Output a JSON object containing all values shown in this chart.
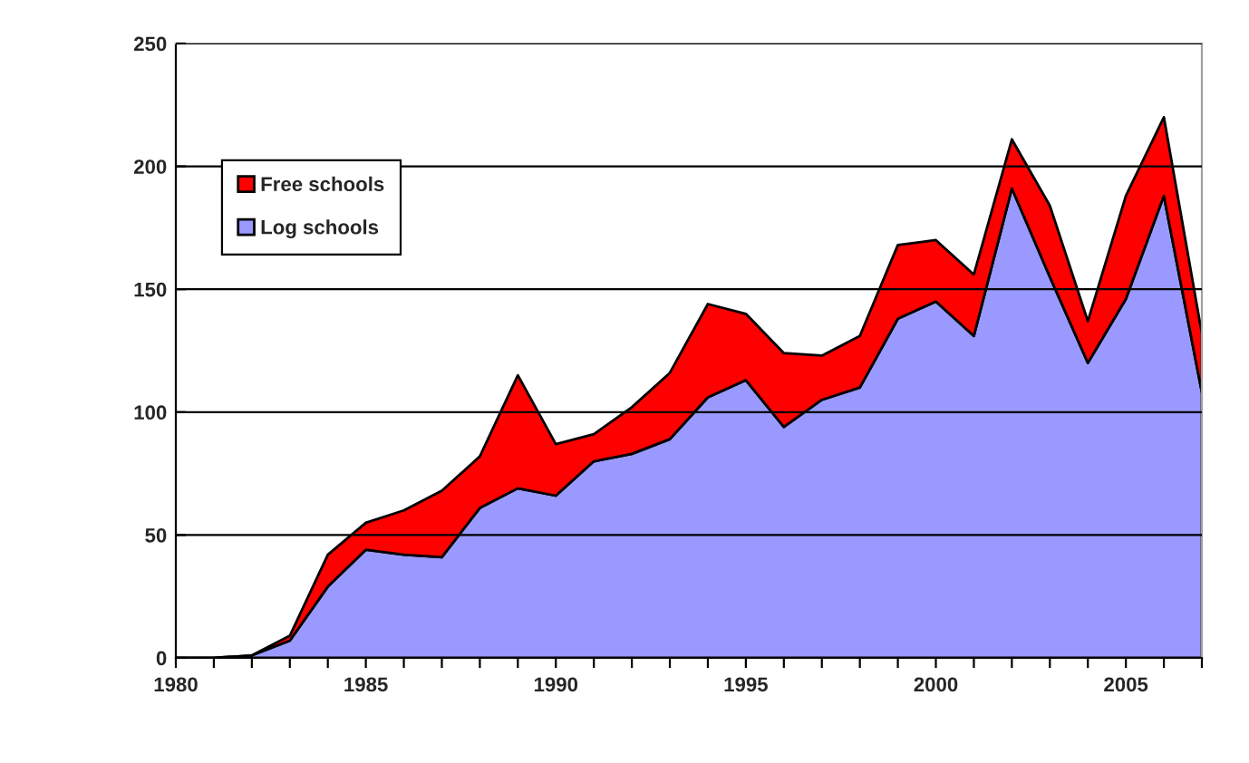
{
  "chart_data": {
    "type": "area",
    "stacked": true,
    "x": [
      1980,
      1981,
      1982,
      1983,
      1984,
      1985,
      1986,
      1987,
      1988,
      1989,
      1990,
      1991,
      1992,
      1993,
      1994,
      1995,
      1996,
      1997,
      1998,
      1999,
      2000,
      2001,
      2002,
      2003,
      2004,
      2005,
      2006,
      2007
    ],
    "series": [
      {
        "name": "Log schools",
        "color": "#9999ff",
        "values": [
          0,
          0,
          1,
          7,
          29,
          44,
          42,
          41,
          61,
          69,
          66,
          80,
          83,
          89,
          106,
          113,
          94,
          105,
          110,
          138,
          145,
          131,
          191,
          155,
          120,
          146,
          188,
          108
        ]
      },
      {
        "name": "Free schools",
        "color": "#ff0000",
        "values": [
          0,
          0,
          0,
          2,
          13,
          11,
          18,
          27,
          21,
          46,
          21,
          11,
          19,
          27,
          38,
          27,
          30,
          18,
          21,
          30,
          25,
          25,
          20,
          29,
          17,
          42,
          32,
          24
        ]
      }
    ],
    "xlim": [
      1980,
      2007
    ],
    "xticks": [
      1980,
      {
        "value": 1981,
        "label": null
      },
      {
        "value": 1982,
        "label": null
      },
      {
        "value": 1983,
        "label": null
      },
      {
        "value": 1984,
        "label": null
      },
      1985,
      {
        "value": 1986,
        "label": null
      },
      {
        "value": 1987,
        "label": null
      },
      {
        "value": 1988,
        "label": null
      },
      {
        "value": 1989,
        "label": null
      },
      1990,
      {
        "value": 1991,
        "label": null
      },
      {
        "value": 1992,
        "label": null
      },
      {
        "value": 1993,
        "label": null
      },
      {
        "value": 1994,
        "label": null
      },
      1995,
      {
        "value": 1996,
        "label": null
      },
      {
        "value": 1997,
        "label": null
      },
      {
        "value": 1998,
        "label": null
      },
      {
        "value": 1999,
        "label": null
      },
      2000,
      {
        "value": 2001,
        "label": null
      },
      {
        "value": 2002,
        "label": null
      },
      {
        "value": 2003,
        "label": null
      },
      {
        "value": 2004,
        "label": null
      },
      2005,
      {
        "value": 2006,
        "label": null
      },
      {
        "value": 2007,
        "label": null
      }
    ],
    "ylim": [
      0,
      250
    ],
    "yticks": [
      0,
      50,
      100,
      150,
      200,
      250
    ],
    "grid": "y",
    "legend": "top left"
  }
}
